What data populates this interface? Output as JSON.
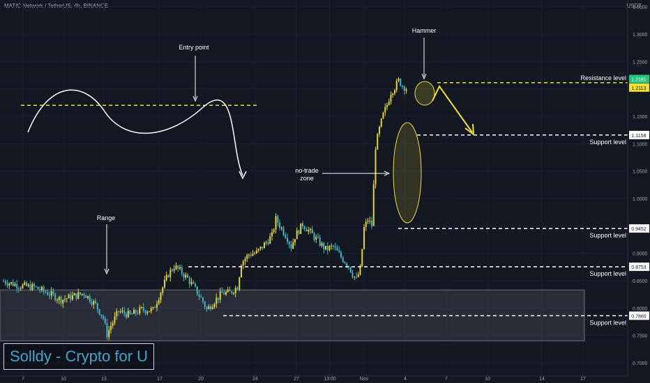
{
  "header": {
    "symbol": "MATIC Network / TetherUS, 4h, BINANCE",
    "currency": "USDT"
  },
  "brand": "Solldy - Crypto for U",
  "colors": {
    "bg": "#131722",
    "up": "#e7d42a",
    "down": "#3fb6c8",
    "annotation": "#ffffff",
    "highlight": "#f0e130",
    "range_box": "#6b6f78"
  },
  "chart_data": {
    "type": "candlestick",
    "y_ticks": [
      "1.3500",
      "1.3000",
      "1.2500",
      "1.2000",
      "1.1500",
      "1.1000",
      "1.0500",
      "1.0000",
      "0.9500",
      "0.9000",
      "0.8500",
      "0.8000",
      "0.7500",
      "0.7000"
    ],
    "x_ticks": [
      "7",
      "10",
      "13",
      "17",
      "20",
      "24",
      "27",
      "13:00",
      "Nov",
      "4",
      "7",
      "10",
      "14",
      "17"
    ],
    "price_labels": [
      {
        "label": "1.2181",
        "value": 1.2181,
        "bg": "#26c281",
        "fg": "#ffffff"
      },
      {
        "label": "1.2113",
        "value": 1.2113,
        "bg": "#f0e130",
        "fg": "#131722"
      },
      {
        "label": "1.1158",
        "value": 1.1158,
        "bg": "#ffffff",
        "fg": "#131722"
      },
      {
        "label": "0.9452",
        "value": 0.9452,
        "bg": "#ffffff",
        "fg": "#131722"
      },
      {
        "label": "0.8753",
        "value": 0.8753,
        "bg": "#ffffff",
        "fg": "#131722"
      },
      {
        "label": "0.7860",
        "value": 0.786,
        "bg": "#ffffff",
        "fg": "#131722"
      }
    ],
    "levels": [
      {
        "label": "Resistance level",
        "value": 1.2113
      },
      {
        "label": "Support level",
        "value": 1.1158
      },
      {
        "label": "Support level",
        "value": 0.9452
      },
      {
        "label": "Support level",
        "value": 0.8753
      },
      {
        "label": "Support level",
        "value": 0.786
      }
    ],
    "range_box": {
      "top": 0.833,
      "bottom": 0.74,
      "x_from": "7",
      "x_to": "17"
    },
    "annotations": {
      "entry": "Entry point",
      "range": "Range",
      "no_trade_1": "no-trade",
      "no_trade_2": "zone",
      "hammer": "Hammer"
    },
    "path": [
      [
        0,
        0.849
      ],
      [
        8,
        0.841
      ],
      [
        16,
        0.838
      ],
      [
        24,
        0.826
      ],
      [
        30,
        0.815
      ],
      [
        36,
        0.821
      ],
      [
        42,
        0.827
      ],
      [
        48,
        0.806
      ],
      [
        52,
        0.782
      ],
      [
        54,
        0.752
      ],
      [
        56,
        0.768
      ],
      [
        60,
        0.794
      ],
      [
        66,
        0.787
      ],
      [
        72,
        0.797
      ],
      [
        78,
        0.796
      ],
      [
        82,
        0.83
      ],
      [
        86,
        0.862
      ],
      [
        89,
        0.876
      ],
      [
        92,
        0.868
      ],
      [
        96,
        0.854
      ],
      [
        100,
        0.834
      ],
      [
        104,
        0.812
      ],
      [
        106,
        0.797
      ],
      [
        110,
        0.813
      ],
      [
        114,
        0.827
      ],
      [
        118,
        0.828
      ],
      [
        122,
        0.839
      ],
      [
        124,
        0.883
      ],
      [
        128,
        0.898
      ],
      [
        132,
        0.901
      ],
      [
        136,
        0.916
      ],
      [
        140,
        0.932
      ],
      [
        142,
        0.962
      ],
      [
        144,
        0.951
      ],
      [
        148,
        0.928
      ],
      [
        150,
        0.912
      ],
      [
        152,
        0.931
      ],
      [
        156,
        0.953
      ],
      [
        160,
        0.938
      ],
      [
        164,
        0.922
      ],
      [
        168,
        0.907
      ],
      [
        172,
        0.912
      ],
      [
        176,
        0.893
      ],
      [
        180,
        0.877
      ],
      [
        182,
        0.862
      ],
      [
        184,
        0.852
      ],
      [
        186,
        0.87
      ],
      [
        188,
        0.946
      ],
      [
        190,
        0.961
      ],
      [
        192,
        0.951
      ],
      [
        194,
        1.095
      ],
      [
        196,
        1.127
      ],
      [
        198,
        1.153
      ],
      [
        200,
        1.171
      ],
      [
        202,
        1.194
      ],
      [
        204,
        1.203
      ],
      [
        206,
        1.215
      ],
      [
        208,
        1.206
      ],
      [
        210,
        1.201
      ]
    ]
  }
}
